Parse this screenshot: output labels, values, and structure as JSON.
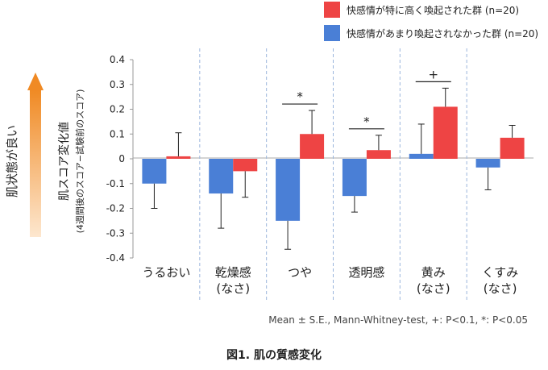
{
  "chart_data": {
    "type": "bar",
    "categories": [
      {
        "line1": "うるおい",
        "line2": ""
      },
      {
        "line1": "乾燥感",
        "line2": "(なさ)"
      },
      {
        "line1": "つや",
        "line2": ""
      },
      {
        "line1": "透明感",
        "line2": ""
      },
      {
        "line1": "黄み",
        "line2": "(なさ)"
      },
      {
        "line1": "くすみ",
        "line2": "(なさ)"
      }
    ],
    "series": [
      {
        "name": "快感情が特に高く喚起された群 (n=20)",
        "color": "#ee4444",
        "values": [
          0.01,
          -0.05,
          0.1,
          0.035,
          0.21,
          0.085
        ],
        "errors": [
          0.095,
          0.105,
          0.095,
          0.06,
          0.075,
          0.05
        ]
      },
      {
        "name": "快感情があまり喚起されなかった群 (n=20)",
        "color": "#4a7fd6",
        "values": [
          -0.1,
          -0.14,
          -0.25,
          -0.15,
          0.02,
          -0.035
        ],
        "errors": [
          0.1,
          0.14,
          0.115,
          0.065,
          0.12,
          0.09
        ]
      }
    ],
    "significance": [
      {
        "category": 2,
        "label": "*"
      },
      {
        "category": 3,
        "label": "*"
      },
      {
        "category": 4,
        "label": "+"
      }
    ],
    "ylim": [
      -0.4,
      0.4
    ],
    "yticks": [
      "0.4",
      "0.3",
      "0.2",
      "0.1",
      "0",
      "-0.1",
      "-0.2",
      "-0.3",
      "-0.4"
    ],
    "ytick_values": [
      0.4,
      0.3,
      0.2,
      0.1,
      0,
      -0.1,
      -0.2,
      -0.3,
      -0.4
    ],
    "ylabel": "肌スコア変化値",
    "ylabel_sub": "(4週間後のスコア−試験前のスコア)",
    "side_label": "肌状態が良い",
    "footnote": "Mean ± S.E., Mann-Whitney-test, +: P<0.1, *: P<0.05",
    "caption": "図1. 肌の質感変化",
    "arrow_color": "#f08a24",
    "legend_position": "top-right",
    "grid": "dashed vertical separators"
  }
}
